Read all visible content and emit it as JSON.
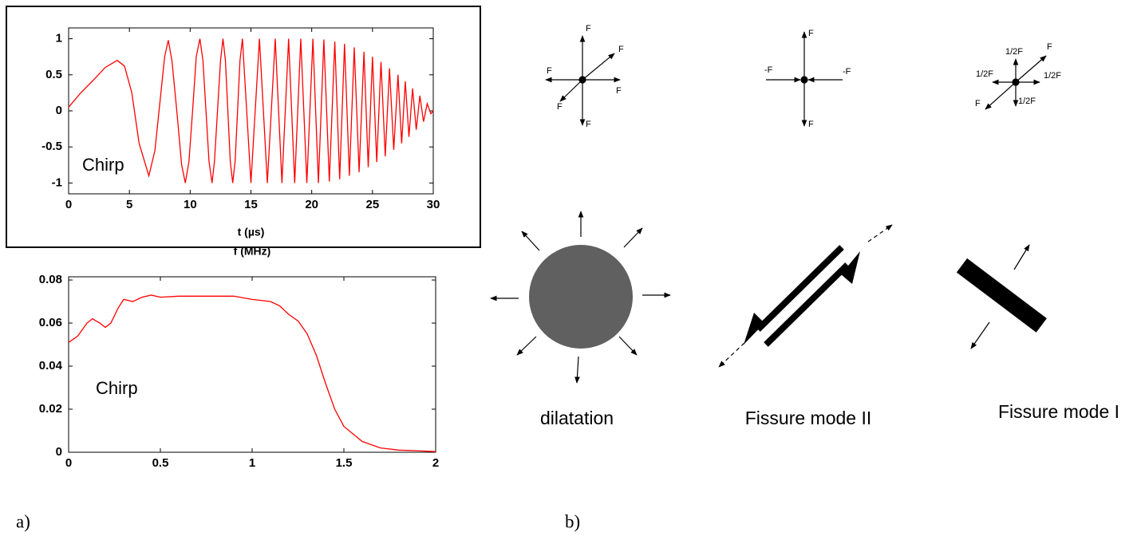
{
  "chart_data": [
    {
      "type": "line",
      "annotation": "Chirp",
      "xlabel": "t (µs)",
      "color": "#ff0000",
      "x": [
        0,
        1,
        2,
        3,
        4,
        4.6,
        5.2,
        5.8,
        6.6,
        7.1,
        7.5,
        7.9,
        8.2,
        8.5,
        8.9,
        9.3,
        9.6,
        9.9,
        10.2,
        10.5,
        10.8,
        11.05,
        11.3,
        11.55,
        11.8,
        12.0,
        12.25,
        12.5,
        12.7,
        12.9,
        13.1,
        13.3,
        13.5,
        13.7,
        13.9,
        14.1,
        14.3,
        14.65,
        15.0,
        15.35,
        15.7,
        16.35,
        17.0,
        17.55,
        18.1,
        18.6,
        19.1,
        19.6,
        20.1,
        20.55,
        21.0,
        21.45,
        21.9,
        22.3,
        22.7,
        23.1,
        23.5,
        23.9,
        24.3,
        24.65,
        25.0,
        25.35,
        25.7,
        26.05,
        26.4,
        26.75,
        27.1,
        27.4,
        27.7,
        28.0,
        28.3,
        28.6,
        28.9,
        29.2,
        29.5,
        29.8,
        30
      ],
      "values": [
        0.05,
        0.25,
        0.42,
        0.6,
        0.7,
        0.62,
        0.25,
        -0.45,
        -0.9,
        -0.55,
        0.1,
        0.75,
        0.98,
        0.7,
        0,
        -0.75,
        -1,
        -0.7,
        0,
        0.75,
        1,
        0.7,
        0,
        -0.7,
        -1,
        -0.7,
        0,
        0.7,
        1,
        0.7,
        0,
        -0.7,
        -1,
        -0.7,
        0,
        0.7,
        1,
        0,
        -1,
        0,
        1,
        -1,
        1,
        -1,
        1,
        -1,
        1,
        -1,
        1,
        -1,
        0.99,
        -0.98,
        0.96,
        -0.95,
        0.93,
        -0.9,
        0.88,
        -0.85,
        0.82,
        -0.78,
        0.75,
        -0.71,
        0.68,
        -0.63,
        0.59,
        -0.54,
        0.5,
        -0.45,
        0.41,
        -0.36,
        0.31,
        -0.26,
        0.21,
        -0.15,
        0.1,
        -0.04,
        0
      ],
      "xlim": [
        0,
        30
      ],
      "xticks": [
        0,
        5,
        10,
        15,
        20,
        25,
        30
      ],
      "ylim": [
        -1.15,
        1.15
      ],
      "yticks": [
        -1,
        -0.5,
        0,
        0.5,
        1
      ]
    },
    {
      "type": "line",
      "annotation": "Chirp",
      "xlabel": "f (MHz)",
      "color": "#ff0000",
      "x": [
        0,
        0.05,
        0.1,
        0.13,
        0.17,
        0.2,
        0.23,
        0.27,
        0.3,
        0.35,
        0.4,
        0.45,
        0.5,
        0.6,
        0.7,
        0.8,
        0.9,
        1.0,
        1.1,
        1.15,
        1.2,
        1.25,
        1.3,
        1.35,
        1.4,
        1.45,
        1.5,
        1.6,
        1.7,
        1.8,
        1.9,
        2.0
      ],
      "values": [
        0.051,
        0.054,
        0.06,
        0.062,
        0.06,
        0.058,
        0.06,
        0.067,
        0.071,
        0.07,
        0.072,
        0.073,
        0.072,
        0.0725,
        0.0725,
        0.0725,
        0.0725,
        0.071,
        0.07,
        0.068,
        0.064,
        0.061,
        0.055,
        0.045,
        0.032,
        0.02,
        0.012,
        0.005,
        0.002,
        0.001,
        0.0007,
        0.0003
      ],
      "xlim": [
        0,
        2
      ],
      "xticks": [
        0,
        0.5,
        1,
        1.5,
        2
      ],
      "ylim": [
        0,
        0.0815
      ],
      "yticks": [
        0,
        0.02,
        0.04,
        0.06,
        0.08
      ]
    }
  ],
  "figure_labels": [
    "a)",
    "b)"
  ],
  "diagram": {
    "sources": [
      {
        "labels": [
          "F",
          "F",
          "F",
          "F",
          "F",
          "F"
        ]
      },
      {
        "labels": [
          "F",
          "-F",
          "-F",
          "F"
        ]
      },
      {
        "labels": [
          "1/2F",
          "F",
          "1/2F",
          "1/2F",
          "F",
          "1/2F"
        ]
      }
    ],
    "mechanisms": [
      "dilatation",
      "Fissure mode II",
      "Fissure mode I"
    ]
  }
}
